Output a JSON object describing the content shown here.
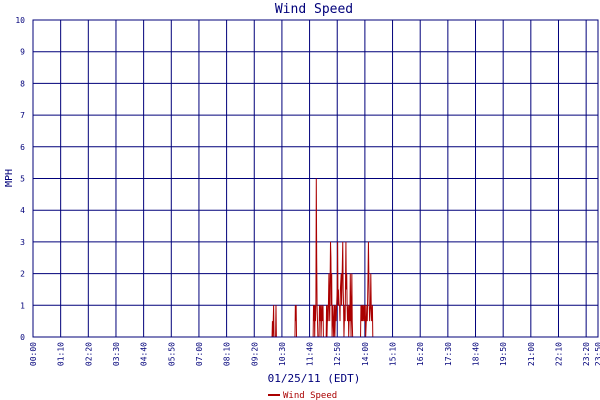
{
  "chart_data": {
    "type": "line",
    "title": "Wind Speed",
    "xlabel": "01/25/11 (EDT)",
    "ylabel": "MPH",
    "ylim": [
      0,
      10
    ],
    "yticks": [
      "0",
      "1",
      "2",
      "3",
      "4",
      "5",
      "6",
      "7",
      "8",
      "9",
      "10"
    ],
    "xlim": [
      "00:00",
      "23:50"
    ],
    "xticks": [
      "00:00",
      "01:10",
      "02:20",
      "03:30",
      "04:40",
      "05:50",
      "07:00",
      "08:10",
      "09:20",
      "10:30",
      "11:40",
      "12:50",
      "14:00",
      "15:10",
      "16:20",
      "17:30",
      "18:40",
      "19:50",
      "21:00",
      "22:10",
      "23:20",
      "23:50"
    ],
    "grid": true,
    "legend": "bottom-center",
    "colors": {
      "series": "#aa0000",
      "grid": "#00007a",
      "text": "#00007a",
      "background": "#ffffff"
    },
    "series": [
      {
        "name": "Wind Speed",
        "points": [
          [
            "00:00",
            0
          ],
          [
            "10:05",
            0
          ],
          [
            "10:06",
            0.5
          ],
          [
            "10:07",
            0
          ],
          [
            "10:09",
            1
          ],
          [
            "10:10",
            0
          ],
          [
            "10:14",
            0
          ],
          [
            "10:15",
            1
          ],
          [
            "10:16",
            0
          ],
          [
            "11:03",
            0
          ],
          [
            "11:04",
            1
          ],
          [
            "11:05",
            0.5
          ],
          [
            "11:06",
            1
          ],
          [
            "11:07",
            0
          ],
          [
            "11:49",
            0
          ],
          [
            "11:50",
            1
          ],
          [
            "11:51",
            0.5
          ],
          [
            "11:52",
            1
          ],
          [
            "11:53",
            0
          ],
          [
            "11:54",
            1
          ],
          [
            "11:55",
            0.5
          ],
          [
            "11:56",
            1
          ],
          [
            "11:57",
            5
          ],
          [
            "11:58",
            2.5
          ],
          [
            "11:59",
            1
          ],
          [
            "12:00",
            0.5
          ],
          [
            "12:01",
            0
          ],
          [
            "12:04",
            0
          ],
          [
            "12:05",
            1
          ],
          [
            "12:06",
            0.5
          ],
          [
            "12:08",
            1
          ],
          [
            "12:09",
            0
          ],
          [
            "12:11",
            1
          ],
          [
            "12:12",
            0.5
          ],
          [
            "12:14",
            1
          ],
          [
            "12:15",
            0
          ],
          [
            "12:22",
            0
          ],
          [
            "12:23",
            1
          ],
          [
            "12:24",
            0
          ],
          [
            "12:26",
            1
          ],
          [
            "12:27",
            0.5
          ],
          [
            "12:29",
            2
          ],
          [
            "12:30",
            1
          ],
          [
            "12:31",
            0.5
          ],
          [
            "12:33",
            3
          ],
          [
            "12:34",
            2.5
          ],
          [
            "12:35",
            1
          ],
          [
            "12:36",
            2
          ],
          [
            "12:37",
            0
          ],
          [
            "12:39",
            1
          ],
          [
            "12:40",
            0.5
          ],
          [
            "12:41",
            0
          ],
          [
            "12:43",
            1
          ],
          [
            "12:44",
            0
          ],
          [
            "12:46",
            1
          ],
          [
            "12:47",
            0.5
          ],
          [
            "12:50",
            1.5
          ],
          [
            "12:51",
            3
          ],
          [
            "12:52",
            1
          ],
          [
            "12:53",
            1.5
          ],
          [
            "12:54",
            1
          ],
          [
            "12:56",
            1
          ],
          [
            "12:57",
            0.5
          ],
          [
            "12:58",
            1.5
          ],
          [
            "13:00",
            2
          ],
          [
            "13:01",
            1
          ],
          [
            "13:04",
            3
          ],
          [
            "13:05",
            1.5
          ],
          [
            "13:06",
            1
          ],
          [
            "13:07",
            0
          ],
          [
            "13:09",
            1
          ],
          [
            "13:10",
            0.5
          ],
          [
            "13:12",
            3
          ],
          [
            "13:13",
            1.5
          ],
          [
            "13:14",
            2
          ],
          [
            "13:15",
            1
          ],
          [
            "13:16",
            0.5
          ],
          [
            "13:18",
            1
          ],
          [
            "13:19",
            0
          ],
          [
            "13:21",
            1
          ],
          [
            "13:22",
            0.5
          ],
          [
            "13:23",
            2
          ],
          [
            "13:24",
            1
          ],
          [
            "13:25",
            0
          ],
          [
            "13:27",
            2
          ],
          [
            "13:28",
            0.5
          ],
          [
            "13:29",
            0
          ],
          [
            "13:49",
            0
          ],
          [
            "13:50",
            1
          ],
          [
            "13:51",
            0.5
          ],
          [
            "13:52",
            1
          ],
          [
            "13:53",
            0.5
          ],
          [
            "13:54",
            1
          ],
          [
            "13:55",
            0.5
          ],
          [
            "13:57",
            1
          ],
          [
            "13:58",
            0.5
          ],
          [
            "13:59",
            1
          ],
          [
            "14:00",
            0.5
          ],
          [
            "14:01",
            1
          ],
          [
            "14:02",
            0
          ],
          [
            "14:05",
            1
          ],
          [
            "14:06",
            0.5
          ],
          [
            "14:08",
            2
          ],
          [
            "14:09",
            3
          ],
          [
            "14:10",
            2
          ],
          [
            "14:11",
            1
          ],
          [
            "14:12",
            0.5
          ],
          [
            "14:14",
            1
          ],
          [
            "14:15",
            2
          ],
          [
            "14:16",
            1
          ],
          [
            "14:17",
            0.5
          ],
          [
            "14:19",
            1
          ],
          [
            "14:20",
            0
          ]
        ]
      }
    ]
  }
}
